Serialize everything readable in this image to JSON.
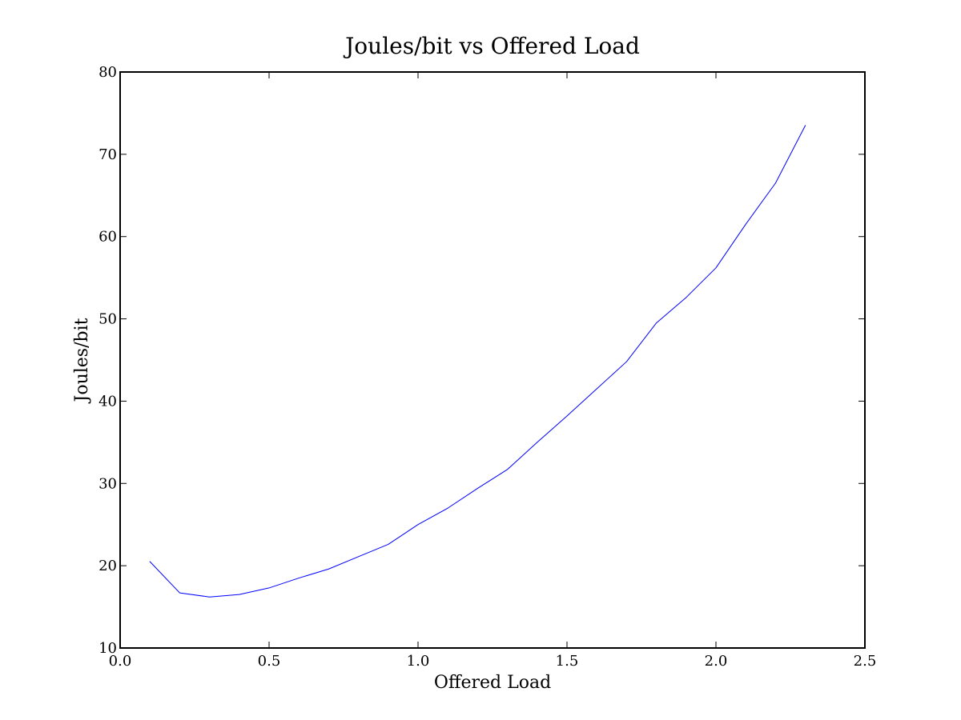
{
  "chart_data": {
    "type": "line",
    "title": "Joules/bit vs Offered Load",
    "xlabel": "Offered Load",
    "ylabel": "Joules/bit",
    "xlim": [
      0.0,
      2.5
    ],
    "ylim": [
      10,
      80
    ],
    "grid": false,
    "x_ticks": [
      "0.0",
      "0.5",
      "1.0",
      "1.5",
      "2.0",
      "2.5"
    ],
    "y_ticks": [
      "10",
      "20",
      "30",
      "40",
      "50",
      "60",
      "70",
      "80"
    ],
    "series": [
      {
        "color": "#0000ff",
        "x": [
          0.1,
          0.2,
          0.3,
          0.4,
          0.5,
          0.6,
          0.7,
          0.8,
          0.9,
          1.0,
          1.1,
          1.2,
          1.3,
          1.4,
          1.5,
          1.6,
          1.7,
          1.8,
          1.9,
          2.0,
          2.1,
          2.2,
          2.3
        ],
        "values": [
          20.5,
          16.7,
          16.2,
          16.5,
          17.3,
          18.5,
          19.6,
          21.1,
          22.6,
          25.0,
          27.0,
          29.4,
          31.7,
          35.0,
          38.2,
          41.5,
          44.8,
          49.5,
          52.6,
          56.2,
          61.5,
          66.5,
          73.5
        ]
      }
    ]
  }
}
